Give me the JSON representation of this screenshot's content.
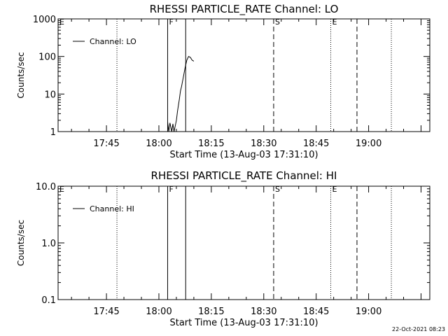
{
  "footer": {
    "timestamp": "22-Oct-2021 08:23"
  },
  "chart_data": [
    {
      "type": "line",
      "title": "RHESSI PARTICLE_RATE Channel: LO",
      "xlabel": "Start Time (13-Aug-03 17:31:10)",
      "ylabel": "Counts/sec",
      "x_ticks": [
        "17:45",
        "18:00",
        "18:15",
        "18:30",
        "18:45",
        "19:00"
      ],
      "y_ticks": [
        "1",
        "10",
        "100",
        "1000"
      ],
      "xlim": [
        "17:31:10",
        "19:17:30"
      ],
      "ylim": [
        1,
        1000
      ],
      "y_scale": "log",
      "legend": {
        "placement": "top-left",
        "entries": [
          "Channel: LO"
        ]
      },
      "markers": [
        {
          "label": "E",
          "time": "17:31:10",
          "style": "solid"
        },
        {
          "label": "",
          "time": "17:48:00",
          "style": "dotted"
        },
        {
          "label": "F",
          "time": "18:02:30",
          "style": "solid"
        },
        {
          "label": "",
          "time": "18:07:40",
          "style": "solid"
        },
        {
          "label": "S",
          "time": "18:32:50",
          "style": "dashed"
        },
        {
          "label": "E",
          "time": "18:49:10",
          "style": "dotted"
        },
        {
          "label": "",
          "time": "18:56:40",
          "style": "dashed"
        },
        {
          "label": "",
          "time": "19:06:30",
          "style": "dotted"
        }
      ],
      "series": [
        {
          "name": "Channel: LO",
          "points": [
            [
              "18:02:30",
              1.8
            ],
            [
              "18:02:50",
              0.9
            ],
            [
              "18:03:10",
              1.7
            ],
            [
              "18:03:40",
              0.9
            ],
            [
              "18:04:00",
              1.6
            ],
            [
              "18:04:20",
              0.9
            ],
            [
              "18:04:40",
              1.4
            ],
            [
              "18:05:00",
              2.0
            ],
            [
              "18:05:20",
              3.5
            ],
            [
              "18:05:50",
              7.0
            ],
            [
              "18:06:10",
              12
            ],
            [
              "18:06:30",
              16
            ],
            [
              "18:07:00",
              28
            ],
            [
              "18:07:30",
              50
            ],
            [
              "18:08:00",
              80
            ],
            [
              "18:08:30",
              100
            ],
            [
              "18:09:00",
              95
            ],
            [
              "18:09:30",
              80
            ],
            [
              "18:10:00",
              75
            ]
          ]
        }
      ]
    },
    {
      "type": "line",
      "title": "RHESSI PARTICLE_RATE Channel: HI",
      "xlabel": "Start Time (13-Aug-03 17:31:10)",
      "ylabel": "Counts/sec",
      "x_ticks": [
        "17:45",
        "18:00",
        "18:15",
        "18:30",
        "18:45",
        "19:00"
      ],
      "y_ticks": [
        "0.1",
        "1.0",
        "10.0"
      ],
      "xlim": [
        "17:31:10",
        "19:17:30"
      ],
      "ylim": [
        0.1,
        10
      ],
      "y_scale": "log",
      "legend": {
        "placement": "top-left",
        "entries": [
          "Channel: HI"
        ]
      },
      "markers": [
        {
          "label": "E",
          "time": "17:31:10",
          "style": "solid"
        },
        {
          "label": "",
          "time": "17:48:00",
          "style": "dotted"
        },
        {
          "label": "F",
          "time": "18:02:30",
          "style": "solid"
        },
        {
          "label": "",
          "time": "18:07:40",
          "style": "solid"
        },
        {
          "label": "S",
          "time": "18:32:50",
          "style": "dashed"
        },
        {
          "label": "E",
          "time": "18:49:10",
          "style": "dotted"
        },
        {
          "label": "",
          "time": "18:56:40",
          "style": "dashed"
        },
        {
          "label": "",
          "time": "19:06:30",
          "style": "dotted"
        }
      ],
      "series": [
        {
          "name": "Channel: HI",
          "points": []
        }
      ]
    }
  ]
}
